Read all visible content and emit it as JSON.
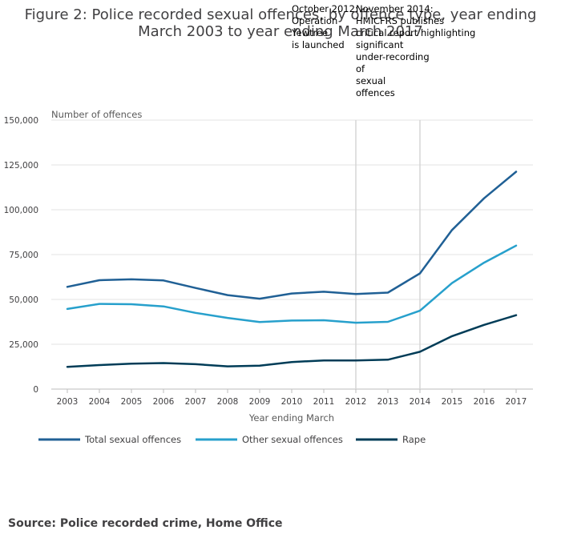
{
  "title_line1": "Figure 2: Police recorded sexual offences, by offence type, year ending",
  "title_line2": "March 2003 to year ending March 2017",
  "source": "Source: Police recorded crime, Home Office",
  "annotations": [
    {
      "year": "2012",
      "lines": [
        "October 2012:",
        "Operation",
        "Yewtree",
        "is launched"
      ]
    },
    {
      "year": "2014",
      "lines": [
        "November 2014:",
        "HMICFRS publishes",
        "critical report highlighting",
        "significant",
        "under-recording",
        "of",
        "sexual",
        "offences"
      ]
    }
  ],
  "chart_data": {
    "type": "line",
    "title": "Figure 2: Police recorded sexual offences, by offence type, year ending March 2003 to year ending March 2017",
    "xlabel": "Year ending March",
    "ylabel": "Number of offences",
    "ylim": [
      0,
      150000
    ],
    "y_ticks": [
      0,
      25000,
      50000,
      75000,
      100000,
      125000,
      150000
    ],
    "y_tick_labels": [
      "0",
      "25,000",
      "50,000",
      "75,000",
      "100,000",
      "125,000",
      "150,000"
    ],
    "categories": [
      "2003",
      "2004",
      "2005",
      "2006",
      "2007",
      "2008",
      "2009",
      "2010",
      "2011",
      "2012",
      "2013",
      "2014",
      "2015",
      "2016",
      "2017"
    ],
    "grid": true,
    "legend_position": "bottom",
    "series": [
      {
        "name": "Total sexual offences",
        "color": "#206095",
        "values": [
          57000,
          60700,
          61200,
          60600,
          56400,
          52400,
          50400,
          53300,
          54300,
          53000,
          53800,
          64500,
          88700,
          106400,
          121200
        ]
      },
      {
        "name": "Other sexual offences",
        "color": "#27a0cc",
        "values": [
          44700,
          47500,
          47300,
          46100,
          42500,
          39700,
          37400,
          38200,
          38400,
          37000,
          37500,
          43700,
          59100,
          70500,
          80000
        ]
      },
      {
        "name": "Rape",
        "color": "#003c57",
        "values": [
          12400,
          13400,
          14200,
          14500,
          13900,
          12700,
          13100,
          15100,
          16000,
          16000,
          16400,
          20800,
          29500,
          35800,
          41200
        ]
      }
    ]
  }
}
